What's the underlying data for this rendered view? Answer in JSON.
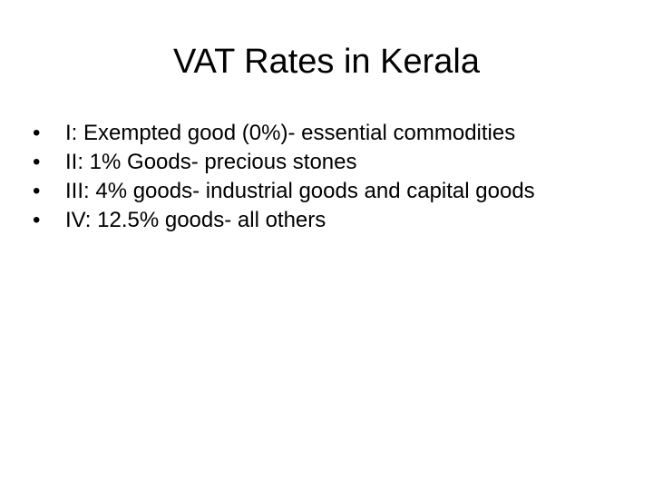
{
  "title": "VAT Rates in Kerala",
  "bullets": [
    "I: Exempted good (0%)- essential commodities",
    "II: 1% Goods- precious stones",
    "III: 4% goods- industrial goods and capital goods",
    "IV: 12.5% goods- all others"
  ]
}
